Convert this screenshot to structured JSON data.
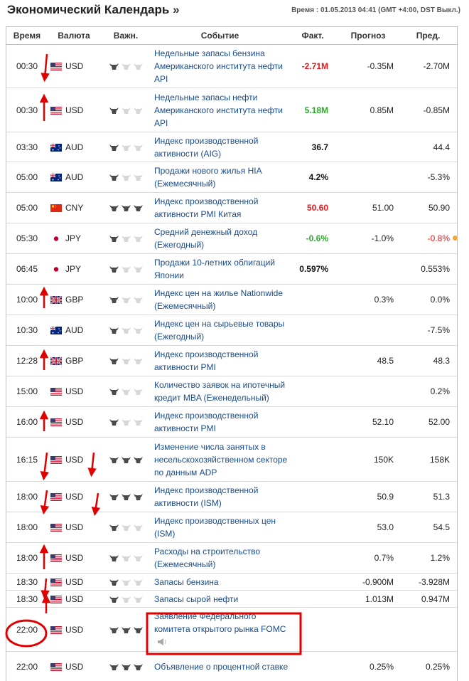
{
  "header": {
    "title": "Экономический Календарь",
    "raquo": "»",
    "time_info": "Время : 01.05.2013 04:41 (GMT +4:00, DST Выкл.)"
  },
  "columns": {
    "time": "Время",
    "currency": "Валюта",
    "importance": "Важн.",
    "event": "Событие",
    "actual": "Факт.",
    "forecast": "Прогноз",
    "previous": "Пред."
  },
  "colors": {
    "link": "#1a4b8c",
    "red": "#e8161b",
    "green": "#2da82d",
    "annotation": "#e00000",
    "dot": "#f0a832"
  },
  "rows": [
    {
      "time": "00:30",
      "currency": "USD",
      "flag": "us-flag-icon",
      "importance": 1,
      "event": "Недельные запасы бензина Американского института нефти API",
      "actual": "-2.71M",
      "actual_color": "red",
      "forecast": "-0.35M",
      "previous": "-2.70M",
      "prev_color": "",
      "dot": false
    },
    {
      "time": "00:30",
      "currency": "USD",
      "flag": "us-flag-icon",
      "importance": 1,
      "event": "Недельные запасы нефти Американского института нефти API",
      "actual": "5.18M",
      "actual_color": "green",
      "forecast": "0.85M",
      "previous": "-0.85M",
      "prev_color": "",
      "dot": false
    },
    {
      "time": "03:30",
      "currency": "AUD",
      "flag": "au-flag-icon",
      "importance": 1,
      "event": "Индекс производственной активности (AIG)",
      "actual": "36.7",
      "actual_color": "black",
      "forecast": "",
      "previous": "44.4",
      "prev_color": "",
      "dot": false
    },
    {
      "time": "05:00",
      "currency": "AUD",
      "flag": "au-flag-icon",
      "importance": 1,
      "event": "Продажи нового жилья HIA (Ежемесячный)",
      "actual": "4.2%",
      "actual_color": "black",
      "forecast": "",
      "previous": "-5.3%",
      "prev_color": "",
      "dot": false
    },
    {
      "time": "05:00",
      "currency": "CNY",
      "flag": "cn-flag-icon",
      "importance": 3,
      "event": "Индекс производственной активности PMI Китая",
      "actual": "50.60",
      "actual_color": "red",
      "forecast": "51.00",
      "previous": "50.90",
      "prev_color": "",
      "dot": false
    },
    {
      "time": "05:30",
      "currency": "JPY",
      "flag": "jp-flag-icon",
      "importance": 1,
      "event": "Средний денежный доход (Ежегодный)",
      "actual": "-0.6%",
      "actual_color": "green",
      "forecast": "-1.0%",
      "previous": "-0.8%",
      "prev_color": "red",
      "dot": true
    },
    {
      "time": "06:45",
      "currency": "JPY",
      "flag": "jp-flag-icon",
      "importance": 1,
      "event": "Продажи 10-летних облигаций Японии",
      "actual": "0.597%",
      "actual_color": "black",
      "forecast": "",
      "previous": "0.553%",
      "prev_color": "",
      "dot": false
    },
    {
      "time": "10:00",
      "currency": "GBP",
      "flag": "gb-flag-icon",
      "importance": 1,
      "event": "Индекс цен на жилье Nationwide (Ежемесячный)",
      "actual": "",
      "actual_color": "black",
      "forecast": "0.3%",
      "previous": "0.0%",
      "prev_color": "",
      "dot": false
    },
    {
      "time": "10:30",
      "currency": "AUD",
      "flag": "au-flag-icon",
      "importance": 1,
      "event": "Индекс цен на сырьевые товары (Ежегодный)",
      "actual": "",
      "actual_color": "black",
      "forecast": "",
      "previous": "-7.5%",
      "prev_color": "",
      "dot": false
    },
    {
      "time": "12:28",
      "currency": "GBP",
      "flag": "gb-flag-icon",
      "importance": 1,
      "event": "Индекс производственной активности PMI",
      "actual": "",
      "actual_color": "black",
      "forecast": "48.5",
      "previous": "48.3",
      "prev_color": "",
      "dot": false
    },
    {
      "time": "15:00",
      "currency": "USD",
      "flag": "us-flag-icon",
      "importance": 1,
      "event": "Количество заявок на ипотечный кредит MBA (Еженедельный)",
      "actual": "",
      "actual_color": "black",
      "forecast": "",
      "previous": "0.2%",
      "prev_color": "",
      "dot": false
    },
    {
      "time": "16:00",
      "currency": "USD",
      "flag": "us-flag-icon",
      "importance": 1,
      "event": "Индекс производственной активности PMI",
      "actual": "",
      "actual_color": "black",
      "forecast": "52.10",
      "previous": "52.00",
      "prev_color": "",
      "dot": false
    },
    {
      "time": "16:15",
      "currency": "USD",
      "flag": "us-flag-icon",
      "importance": 3,
      "event": "Изменение числа занятых в несельскохозяйственном секторе по данным ADP",
      "actual": "",
      "actual_color": "black",
      "forecast": "150K",
      "previous": "158K",
      "prev_color": "",
      "dot": false
    },
    {
      "time": "18:00",
      "currency": "USD",
      "flag": "us-flag-icon",
      "importance": 3,
      "event": "Индекс производственной активности (ISM)",
      "actual": "",
      "actual_color": "black",
      "forecast": "50.9",
      "previous": "51.3",
      "prev_color": "",
      "dot": false
    },
    {
      "time": "18:00",
      "currency": "USD",
      "flag": "us-flag-icon",
      "importance": 1,
      "event": "Индекс производственных цен (ISM)",
      "actual": "",
      "actual_color": "black",
      "forecast": "53.0",
      "previous": "54.5",
      "prev_color": "",
      "dot": false
    },
    {
      "time": "18:00",
      "currency": "USD",
      "flag": "us-flag-icon",
      "importance": 1,
      "event": "Расходы на строительство (Ежемесячный)",
      "actual": "",
      "actual_color": "black",
      "forecast": "0.7%",
      "previous": "1.2%",
      "prev_color": "",
      "dot": false
    },
    {
      "time": "18:30",
      "currency": "USD",
      "flag": "us-flag-icon",
      "importance": 1,
      "event": "Запасы бензина",
      "actual": "",
      "actual_color": "black",
      "forecast": "-0.900M",
      "previous": "-3.928M",
      "prev_color": "",
      "dot": false
    },
    {
      "time": "18:30",
      "currency": "USD",
      "flag": "us-flag-icon",
      "importance": 1,
      "event": "Запасы сырой нефти",
      "actual": "",
      "actual_color": "black",
      "forecast": "1.013M",
      "previous": "0.947M",
      "prev_color": "",
      "dot": false
    },
    {
      "time": "22:00",
      "currency": "USD",
      "flag": "us-flag-icon",
      "importance": 3,
      "event": "Заявление Федерального комитета открытого рынка FOMC",
      "actual": "",
      "actual_color": "black",
      "forecast": "",
      "previous": "",
      "prev_color": "",
      "dot": false,
      "speaker": true
    },
    {
      "time": "22:00",
      "currency": "USD",
      "flag": "us-flag-icon",
      "importance": 3,
      "event": "Объявление о процентной ставке",
      "actual": "",
      "actual_color": "black",
      "forecast": "0.25%",
      "previous": "0.25%",
      "prev_color": "",
      "dot": false
    }
  ]
}
